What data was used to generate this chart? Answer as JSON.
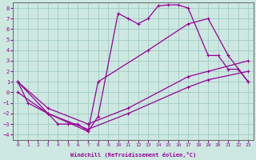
{
  "xlabel": "Windchill (Refroidissement éolien,°C)",
  "background_color": "#cce8e0",
  "grid_color": "#a0ccc4",
  "line_color": "#990099",
  "xlim": [
    -0.5,
    23.5
  ],
  "ylim": [
    -4.5,
    8.5
  ],
  "xticks": [
    0,
    1,
    2,
    3,
    4,
    5,
    6,
    7,
    8,
    9,
    10,
    11,
    12,
    13,
    14,
    15,
    16,
    17,
    18,
    19,
    20,
    21,
    22,
    23
  ],
  "yticks": [
    -4,
    -3,
    -2,
    -1,
    0,
    1,
    2,
    3,
    4,
    5,
    6,
    7,
    8
  ],
  "curve1_x": [
    0,
    1,
    3,
    4,
    5,
    6,
    7,
    8,
    10,
    11,
    12,
    13,
    14,
    15,
    16,
    17,
    19,
    20,
    21,
    22,
    23
  ],
  "curve1_y": [
    1,
    -1,
    -2,
    -3,
    -3,
    -3,
    -3.7,
    -2.3,
    7.5,
    7.0,
    6.5,
    7.0,
    8.2,
    8.3,
    8.3,
    8.0,
    3.5,
    3.5,
    2.2,
    2.2,
    1.0
  ],
  "curve2_x": [
    0,
    3,
    7,
    8,
    13,
    17,
    19,
    21,
    23
  ],
  "curve2_y": [
    1,
    -2,
    -3.7,
    1.0,
    4.0,
    6.5,
    7.0,
    3.5,
    1.0
  ],
  "curve3_x": [
    0,
    3,
    7,
    11,
    17,
    19,
    23
  ],
  "curve3_y": [
    1,
    -1.5,
    -3,
    -1.5,
    1.5,
    2.0,
    3.0
  ],
  "curve4_x": [
    0,
    3,
    7,
    11,
    17,
    19,
    23
  ],
  "curve4_y": [
    0,
    -2,
    -3.5,
    -2,
    0.5,
    1.2,
    2.0
  ]
}
